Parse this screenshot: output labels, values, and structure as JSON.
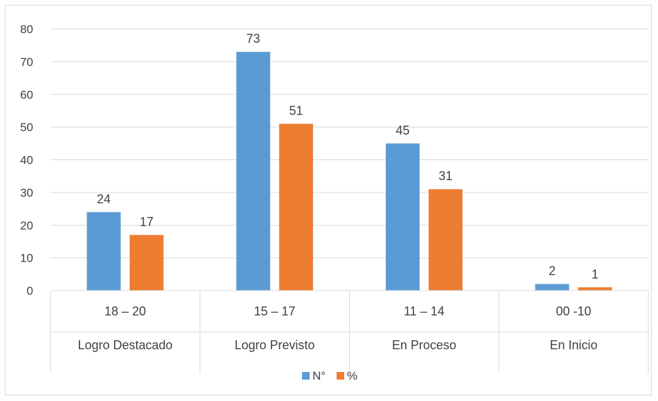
{
  "chart_data": {
    "type": "bar",
    "categories": [
      {
        "range": "18 – 20",
        "group": "Logro Destacado"
      },
      {
        "range": "15 – 17",
        "group": "Logro Previsto"
      },
      {
        "range": "11 – 14",
        "group": "En Proceso"
      },
      {
        "range": "00 -10",
        "group": "En Inicio"
      }
    ],
    "series": [
      {
        "name": "N°",
        "values": [
          24,
          73,
          45,
          2
        ],
        "color": "#5b9bd5"
      },
      {
        "name": "%",
        "values": [
          17,
          51,
          31,
          1
        ],
        "color": "#ed7d31"
      }
    ],
    "ylim": [
      0,
      80
    ],
    "yticks": [
      0,
      10,
      20,
      30,
      40,
      50,
      60,
      70,
      80
    ],
    "grid": true,
    "legend_position": "bottom",
    "data_labels": true
  }
}
